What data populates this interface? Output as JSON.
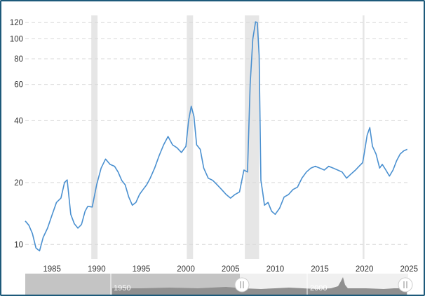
{
  "chart_data": {
    "type": "line",
    "title": "",
    "xlabel": "",
    "ylabel": "",
    "y_scale": "log",
    "ylim": [
      8.5,
      130
    ],
    "xlim": [
      1982.0,
      2024.9
    ],
    "y_ticks": [
      10,
      20,
      40,
      60,
      80,
      100,
      120
    ],
    "x_ticks": [
      1985,
      1990,
      1995,
      2000,
      2005,
      2010,
      2015,
      2020,
      2025
    ],
    "grid": "horizontal-dashed",
    "line_color": "#4a90d0",
    "recession_color": "#e6e6e6",
    "recessions": [
      [
        1989.4,
        1990.1
      ],
      [
        2000.1,
        2000.8
      ],
      [
        2006.6,
        2008.2
      ],
      [
        2019.8,
        2020.0
      ]
    ],
    "series": [
      {
        "x": [
          1982.0,
          1982.4,
          1982.8,
          1983.2,
          1983.6,
          1984.0,
          1984.5,
          1985.0,
          1985.5,
          1986.0,
          1986.4,
          1986.7,
          1987.1,
          1987.5,
          1987.9,
          1988.3,
          1988.7,
          1989.0,
          1989.5,
          1990.0,
          1990.5,
          1991.0,
          1991.5,
          1992.0,
          1992.4,
          1992.8,
          1993.2,
          1993.6,
          1994.0,
          1994.4,
          1994.8,
          1995.2,
          1995.6,
          1996.0,
          1996.5,
          1997.0,
          1997.5,
          1998.0,
          1998.5,
          1999.0,
          1999.5,
          2000.0,
          2000.3,
          2000.6,
          2000.9,
          2001.2,
          2001.6,
          2002.0,
          2002.5,
          2003.0,
          2003.5,
          2004.0,
          2004.5,
          2005.0,
          2005.5,
          2006.0,
          2006.5,
          2006.9,
          2007.2,
          2007.5,
          2007.8,
          2008.0,
          2008.2,
          2008.4,
          2008.6,
          2008.8,
          2009.2,
          2009.6,
          2010.0,
          2010.5,
          2011.0,
          2011.5,
          2012.0,
          2012.5,
          2013.0,
          2013.5,
          2014.0,
          2014.5,
          2015.0,
          2015.5,
          2016.0,
          2016.5,
          2017.0,
          2017.5,
          2018.0,
          2018.5,
          2019.0,
          2019.4,
          2019.8,
          2020.0,
          2020.3,
          2020.6,
          2020.9,
          2021.3,
          2021.7,
          2022.0,
          2022.4,
          2022.8,
          2023.2,
          2023.6,
          2024.0,
          2024.4,
          2024.8
        ],
        "y": [
          13.0,
          12.4,
          11.3,
          9.6,
          9.3,
          10.8,
          12.0,
          13.9,
          16.0,
          16.8,
          20.0,
          20.6,
          14.0,
          12.6,
          12.0,
          12.5,
          14.5,
          15.3,
          15.2,
          19.5,
          23.5,
          26.0,
          24.5,
          24.0,
          22.5,
          20.5,
          19.5,
          17.0,
          15.5,
          16.0,
          17.5,
          18.5,
          19.5,
          21.0,
          23.5,
          27.0,
          30.5,
          33.5,
          30.5,
          29.5,
          28.0,
          30.0,
          40.0,
          47.0,
          42.0,
          30.5,
          29.0,
          23.5,
          21.0,
          20.5,
          19.5,
          18.5,
          17.5,
          16.8,
          17.5,
          18.0,
          23.0,
          22.5,
          60.0,
          100.0,
          121.0,
          120.0,
          83.0,
          20.5,
          18.0,
          15.5,
          16.0,
          14.5,
          14.0,
          15.0,
          17.0,
          17.5,
          18.5,
          19.0,
          21.0,
          22.5,
          23.5,
          24.0,
          23.5,
          23.0,
          24.0,
          23.5,
          23.0,
          22.5,
          21.0,
          22.0,
          23.0,
          24.0,
          25.0,
          28.0,
          34.0,
          37.0,
          30.0,
          27.5,
          23.5,
          24.5,
          23.0,
          21.5,
          23.0,
          25.5,
          27.5,
          28.5,
          29.0
        ]
      }
    ],
    "navigator": {
      "start_label": "1950",
      "end_label": "2000"
    }
  }
}
